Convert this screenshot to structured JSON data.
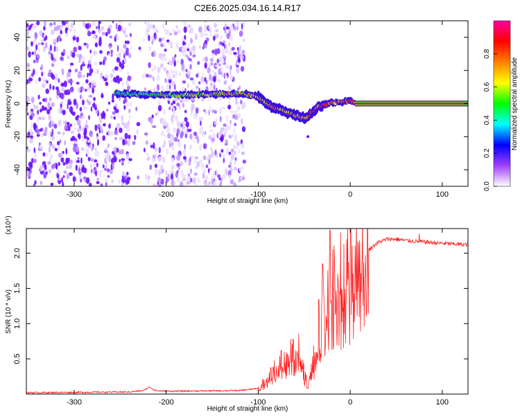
{
  "title": "C2E6.2025.034.16.14.R17",
  "chart_data": [
    {
      "type": "heatmap",
      "xlabel": "Height of straight line (km)",
      "ylabel": "Frequency (Hz)",
      "xlim": [
        -352,
        128
      ],
      "ylim": [
        -50,
        50
      ],
      "x_ticks": [
        -300,
        -200,
        -100,
        0,
        100
      ],
      "x_tick_labels": [
        "-300",
        "-200",
        "-100",
        "0",
        "100"
      ],
      "y_ticks": [
        -40,
        -20,
        0,
        20,
        40
      ],
      "y_tick_labels": [
        "-40",
        "-20",
        "0",
        "20",
        "40"
      ],
      "colorbar": {
        "label": "Normalized spectral amplitude",
        "range": [
          0,
          1
        ],
        "ticks": [
          0,
          0.2,
          0.4,
          0.6,
          0.8
        ],
        "tick_labels": [
          "0.0",
          "0.2",
          "0.4",
          "0.6",
          "0.8"
        ],
        "colormap": [
          "#ffffff",
          "#a040ff",
          "#0000ff",
          "#00ffff",
          "#00ff00",
          "#ffff00",
          "#ff8000",
          "#ff0000",
          "#ff00a0"
        ]
      },
      "features": {
        "noise_region_x": [
          -352,
          -115
        ],
        "signal_ridge": [
          {
            "x": -255,
            "y": 6
          },
          {
            "x": -200,
            "y": 5
          },
          {
            "x": -150,
            "y": 5.5
          },
          {
            "x": -115,
            "y": 6
          },
          {
            "x": -100,
            "y": 4
          },
          {
            "x": -85,
            "y": -2
          },
          {
            "x": -65,
            "y": -6
          },
          {
            "x": -48,
            "y": -9
          },
          {
            "x": -35,
            "y": -2
          },
          {
            "x": -20,
            "y": 0.5
          },
          {
            "x": 0,
            "y": 1.5
          },
          {
            "x": 5,
            "y": 0.5
          }
        ],
        "carrier_line": {
          "x_range": [
            5,
            128
          ],
          "y": 0
        }
      }
    },
    {
      "type": "line",
      "xlabel": "Height of straight line (km)",
      "ylabel": "SNR (10 * v/v)",
      "y_multiplier": "(x10⁴)",
      "xlim": [
        -352,
        128
      ],
      "ylim": [
        0,
        2.35
      ],
      "x_ticks": [
        -300,
        -200,
        -100,
        0,
        100
      ],
      "x_tick_labels": [
        "-300",
        "-200",
        "-100",
        "0",
        "100"
      ],
      "y_ticks": [
        0.5,
        1.0,
        1.5,
        2.0
      ],
      "y_tick_labels": [
        "0.5",
        "1.0",
        "1.5",
        "2.0"
      ],
      "color": "#ff2020",
      "series": [
        {
          "x": [
            -352,
            -240,
            -225,
            -218,
            -212,
            -200,
            -120,
            -100,
            -90,
            -80,
            -70,
            -60,
            -55,
            -50,
            -45,
            -40,
            -35,
            -30,
            -25,
            -20,
            -15,
            -10,
            -5,
            0,
            10,
            20,
            30,
            40,
            50,
            60,
            70,
            80,
            100,
            128
          ],
          "y": [
            0.02,
            0.03,
            0.05,
            0.1,
            0.05,
            0.04,
            0.05,
            0.08,
            0.2,
            0.35,
            0.45,
            0.55,
            0.6,
            0.25,
            0.15,
            0.45,
            0.85,
            1.1,
            1.3,
            1.4,
            1.45,
            1.5,
            1.6,
            1.7,
            1.9,
            2.05,
            2.15,
            2.2,
            2.2,
            2.18,
            2.17,
            2.16,
            2.14,
            2.12
          ]
        }
      ],
      "spikes": [
        {
          "x": -75,
          "y": 0.62
        },
        {
          "x": -62,
          "y": 0.78
        },
        {
          "x": -30,
          "y": 1.85
        },
        {
          "x": -22,
          "y": 2.33
        },
        {
          "x": 75,
          "y": 2.28
        }
      ]
    }
  ]
}
